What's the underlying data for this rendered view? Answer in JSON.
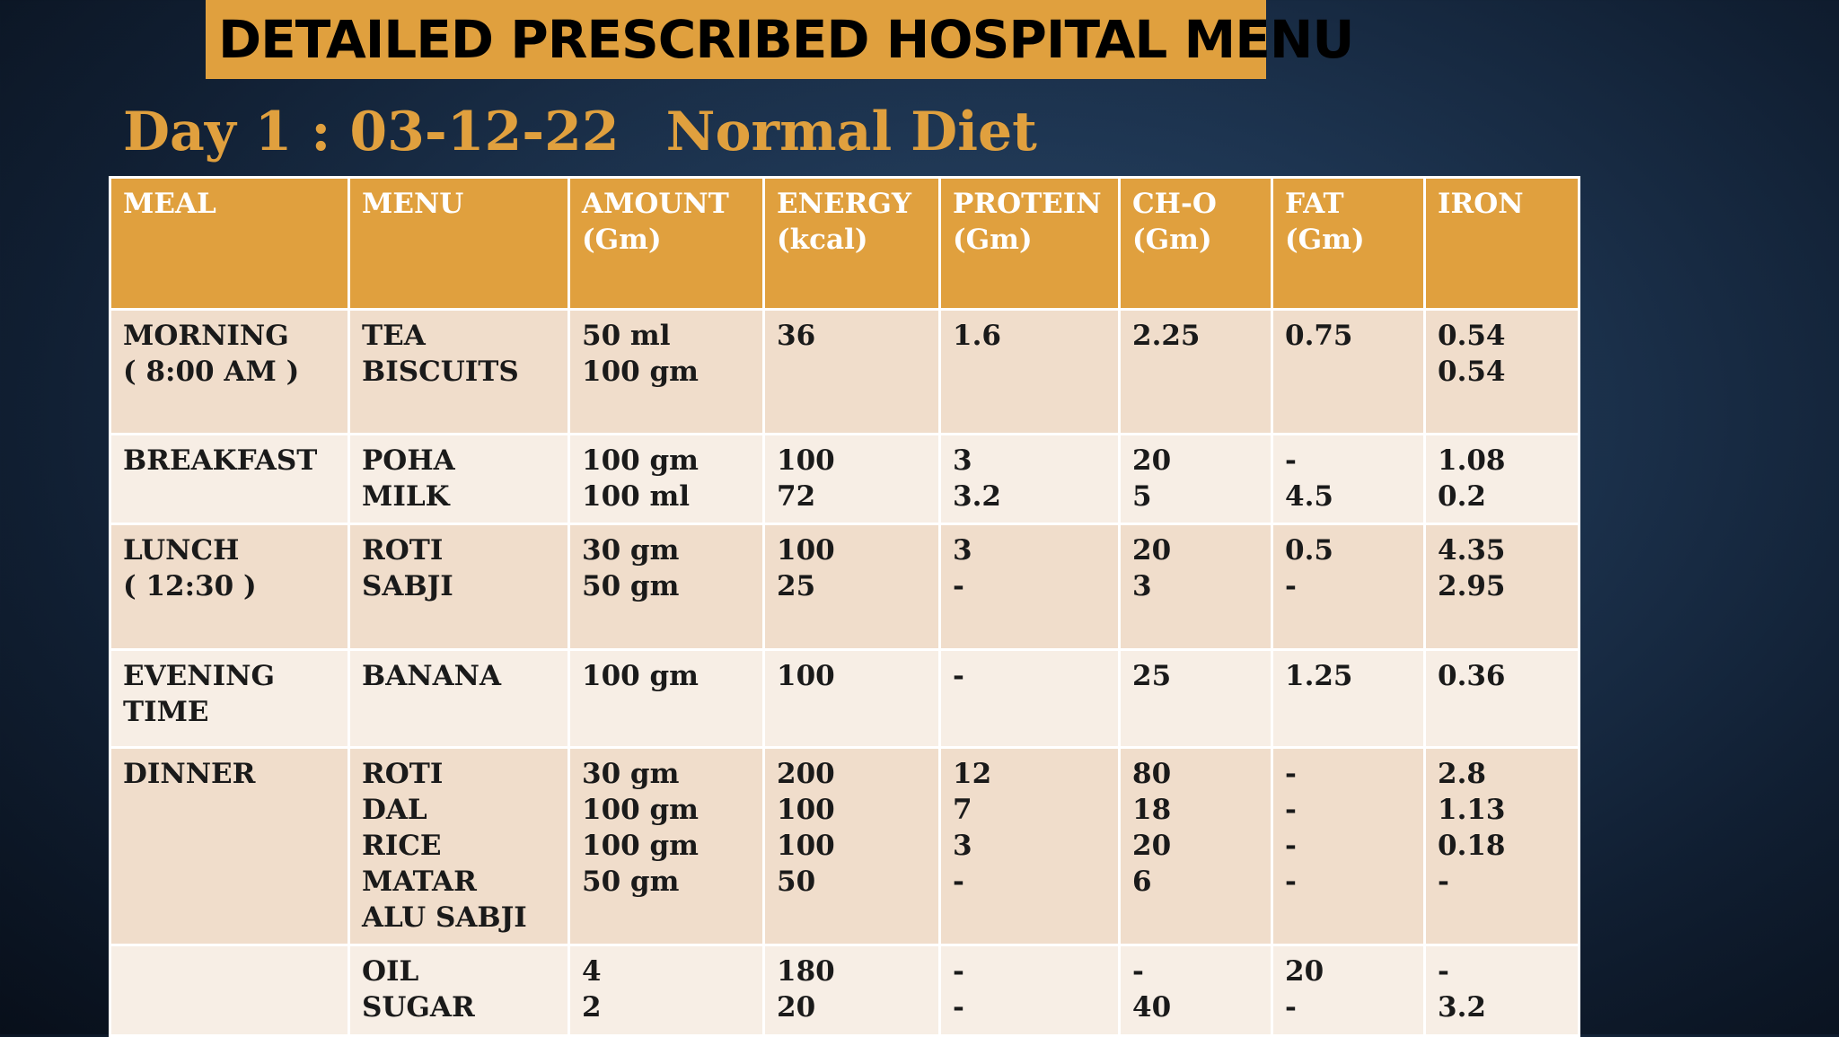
{
  "title": "DETAILED PRESCRIBED HOSPITAL MENU",
  "subtitle": {
    "day": "Day 1 : 03-12-22",
    "diet": "Normal Diet"
  },
  "table": {
    "headers": [
      [
        "MEAL"
      ],
      [
        "MENU"
      ],
      [
        "AMOUNT",
        "(Gm)"
      ],
      [
        "ENERGY",
        "(kcal)"
      ],
      [
        "PROTEIN",
        "(Gm)"
      ],
      [
        "CH-O",
        "(Gm)"
      ],
      [
        "FAT",
        "(Gm)"
      ],
      [
        "IRON"
      ]
    ],
    "rows": [
      [
        [
          "MORNING",
          "( 8:00 AM )"
        ],
        [
          "TEA",
          "BISCUITS"
        ],
        [
          "50 ml",
          "100 gm"
        ],
        [
          "36"
        ],
        [
          "1.6"
        ],
        [
          "2.25"
        ],
        [
          "0.75"
        ],
        [
          "0.54",
          "0.54"
        ]
      ],
      [
        [
          "BREAKFAST"
        ],
        [
          "POHA",
          "MILK"
        ],
        [
          "100 gm",
          "100 ml"
        ],
        [
          "100",
          "72"
        ],
        [
          "3",
          "3.2"
        ],
        [
          "20",
          "5"
        ],
        [
          "-",
          "4.5"
        ],
        [
          "1.08",
          "0.2"
        ]
      ],
      [
        [
          "LUNCH",
          "( 12:30 )"
        ],
        [
          "ROTI",
          "SABJI"
        ],
        [
          "30 gm",
          "50 gm"
        ],
        [
          "100",
          "25"
        ],
        [
          "3",
          "-"
        ],
        [
          "20",
          "3"
        ],
        [
          "0.5",
          "-"
        ],
        [
          "4.35",
          "2.95"
        ]
      ],
      [
        [
          "EVENING",
          "TIME"
        ],
        [
          "BANANA"
        ],
        [
          "100 gm"
        ],
        [
          "100"
        ],
        [
          "-"
        ],
        [
          "25"
        ],
        [
          "1.25"
        ],
        [
          "0.36"
        ]
      ],
      [
        [
          "DINNER"
        ],
        [
          "ROTI",
          "DAL",
          "RICE",
          "MATAR",
          "ALU SABJI"
        ],
        [
          "30 gm",
          "100 gm",
          "100 gm",
          "50 gm"
        ],
        [
          "200",
          "100",
          "100",
          "50"
        ],
        [
          "12",
          "7",
          "3",
          "-"
        ],
        [
          "80",
          "18",
          "20",
          "6"
        ],
        [
          "-",
          "-",
          "-",
          "-"
        ],
        [
          "2.8",
          "1.13",
          "0.18",
          "-"
        ]
      ],
      [
        [],
        [
          "OIL",
          "SUGAR"
        ],
        [
          "4",
          "2"
        ],
        [
          "180",
          "20"
        ],
        [
          "-",
          "-"
        ],
        [
          "-",
          "40"
        ],
        [
          "20",
          "-"
        ],
        [
          "-",
          "3.2"
        ]
      ]
    ]
  }
}
